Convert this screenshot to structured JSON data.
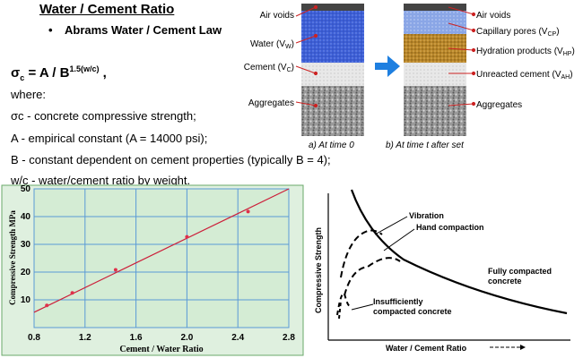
{
  "heading": "Water / Cement Ratio",
  "bullet": "Abrams Water / Cement Law",
  "formula": {
    "sigma": "σ",
    "sigma_sub": "c",
    "body": " = A / B",
    "exponent": "1.5(w/c)",
    "tail": " ,"
  },
  "definitions": [
    "where:",
    "σc - concrete compressive strength;",
    "A - empirical constant (A = 14000 psi);",
    "B - constant dependent on cement properties (typically B = 4);",
    "w/c - water/cement ratio by weight."
  ],
  "hydration_diagram": {
    "left_labels": [
      "Air voids",
      "Water (VW)",
      "Cement (VC)",
      "Aggregates"
    ],
    "right_labels": [
      "Air voids",
      "Capillary pores (VCP)",
      "Hydration products (VHP)",
      "Unreacted cement (VAH)",
      "Aggregates"
    ],
    "caption_left": "a) At time 0",
    "caption_right": "b) At time t after set",
    "colors": {
      "air": "#444444",
      "water": "#3d5fd6",
      "cement": "#e8e8e8",
      "aggregate": "#9a9a9a",
      "pores": "#8aa6e6",
      "hydration": "#b8862a",
      "unreacted": "#f0f0f0",
      "arrow": "#1e7fe0",
      "leader": "#cc2222"
    }
  },
  "chart_data": [
    {
      "type": "scatter",
      "title": "",
      "xlabel": "Cement / Water Ratio",
      "ylabel": "Compressive Strength MPa",
      "xlim": [
        0.8,
        2.8
      ],
      "ylim": [
        0,
        50
      ],
      "xticks": [
        0.8,
        1.2,
        1.6,
        2.0,
        2.4,
        2.8
      ],
      "yticks": [
        10,
        20,
        30,
        40,
        50
      ],
      "grid": true,
      "background": "#d4ecd4",
      "grid_color": "#5a9ad6",
      "marker_color": "#e0304a",
      "line_color": "#cc1f3a",
      "points": [
        {
          "x": 0.9,
          "y": 8
        },
        {
          "x": 1.1,
          "y": 12.5
        },
        {
          "x": 1.44,
          "y": 20.8
        },
        {
          "x": 2.0,
          "y": 32.7
        },
        {
          "x": 2.48,
          "y": 41.8
        }
      ],
      "fit_line": [
        {
          "x": 0.8,
          "y": 5.5
        },
        {
          "x": 2.8,
          "y": 50
        }
      ]
    },
    {
      "type": "line",
      "title": "",
      "xlabel": "Water / Cement Ratio",
      "ylabel": "Compressive Strength",
      "annotations": [
        "Vibration",
        "Hand compaction",
        "Fully compacted concrete",
        "Insufficiently compacted concrete"
      ]
    }
  ]
}
